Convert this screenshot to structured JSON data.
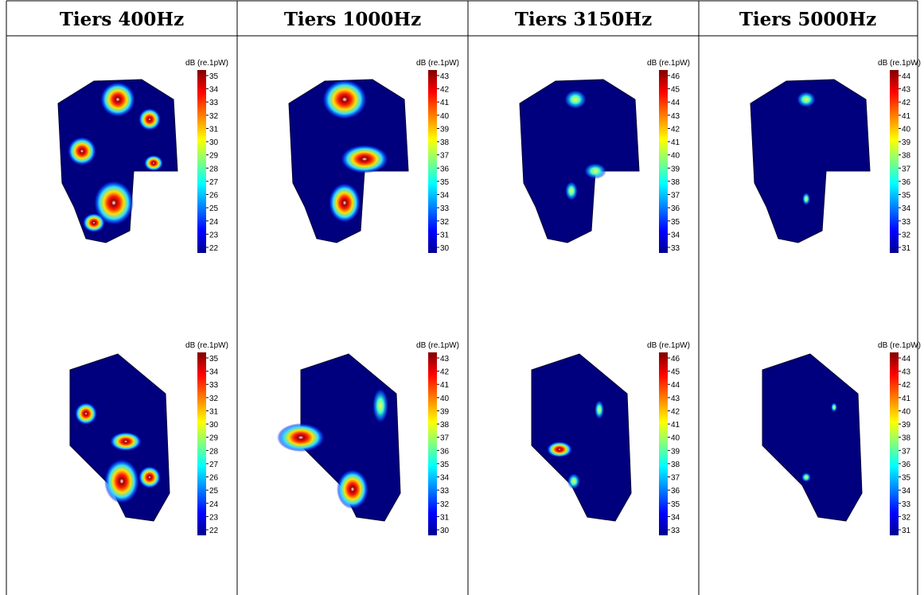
{
  "header": {
    "columns": [
      "Tiers 400Hz",
      "Tiers 1000Hz",
      "Tiers 3150Hz",
      "Tiers 5000Hz"
    ]
  },
  "table": {
    "rows": [
      {
        "cells": [
          {
            "colorbar": {
              "label": "dB (re.1pW)",
              "ticks": [
                35,
                34,
                33,
                32,
                31,
                30,
                29,
                28,
                27,
                26,
                25,
                24,
                23,
                22
              ]
            }
          },
          {
            "colorbar": {
              "label": "dB (re.1pW)",
              "ticks": [
                43,
                42,
                41,
                40,
                39,
                38,
                37,
                36,
                35,
                34,
                33,
                32,
                31,
                30
              ]
            }
          },
          {
            "colorbar": {
              "label": "dB (re.1pW)",
              "ticks": [
                46,
                45,
                44,
                43,
                42,
                41,
                40,
                39,
                38,
                37,
                36,
                35,
                34,
                33
              ]
            }
          },
          {
            "colorbar": {
              "label": "dB (re.1pW)",
              "ticks": [
                44,
                43,
                42,
                41,
                40,
                39,
                38,
                37,
                36,
                35,
                34,
                33,
                32,
                31
              ]
            }
          }
        ]
      },
      {
        "cells": [
          {
            "colorbar": {
              "label": "dB (re.1pW)",
              "ticks": [
                35,
                34,
                33,
                32,
                31,
                30,
                29,
                28,
                27,
                26,
                25,
                24,
                23,
                22
              ]
            }
          },
          {
            "colorbar": {
              "label": "dB (re.1pW)",
              "ticks": [
                43,
                42,
                41,
                40,
                39,
                38,
                37,
                36,
                35,
                34,
                33,
                32,
                31,
                30
              ]
            }
          },
          {
            "colorbar": {
              "label": "dB (re.1pW)",
              "ticks": [
                46,
                45,
                44,
                43,
                42,
                41,
                40,
                39,
                38,
                37,
                36,
                35,
                34,
                33
              ]
            }
          },
          {
            "colorbar": {
              "label": "dB (re.1pW)",
              "ticks": [
                44,
                43,
                42,
                41,
                40,
                39,
                38,
                37,
                36,
                35,
                34,
                33,
                32,
                31
              ]
            }
          }
        ]
      }
    ]
  }
}
